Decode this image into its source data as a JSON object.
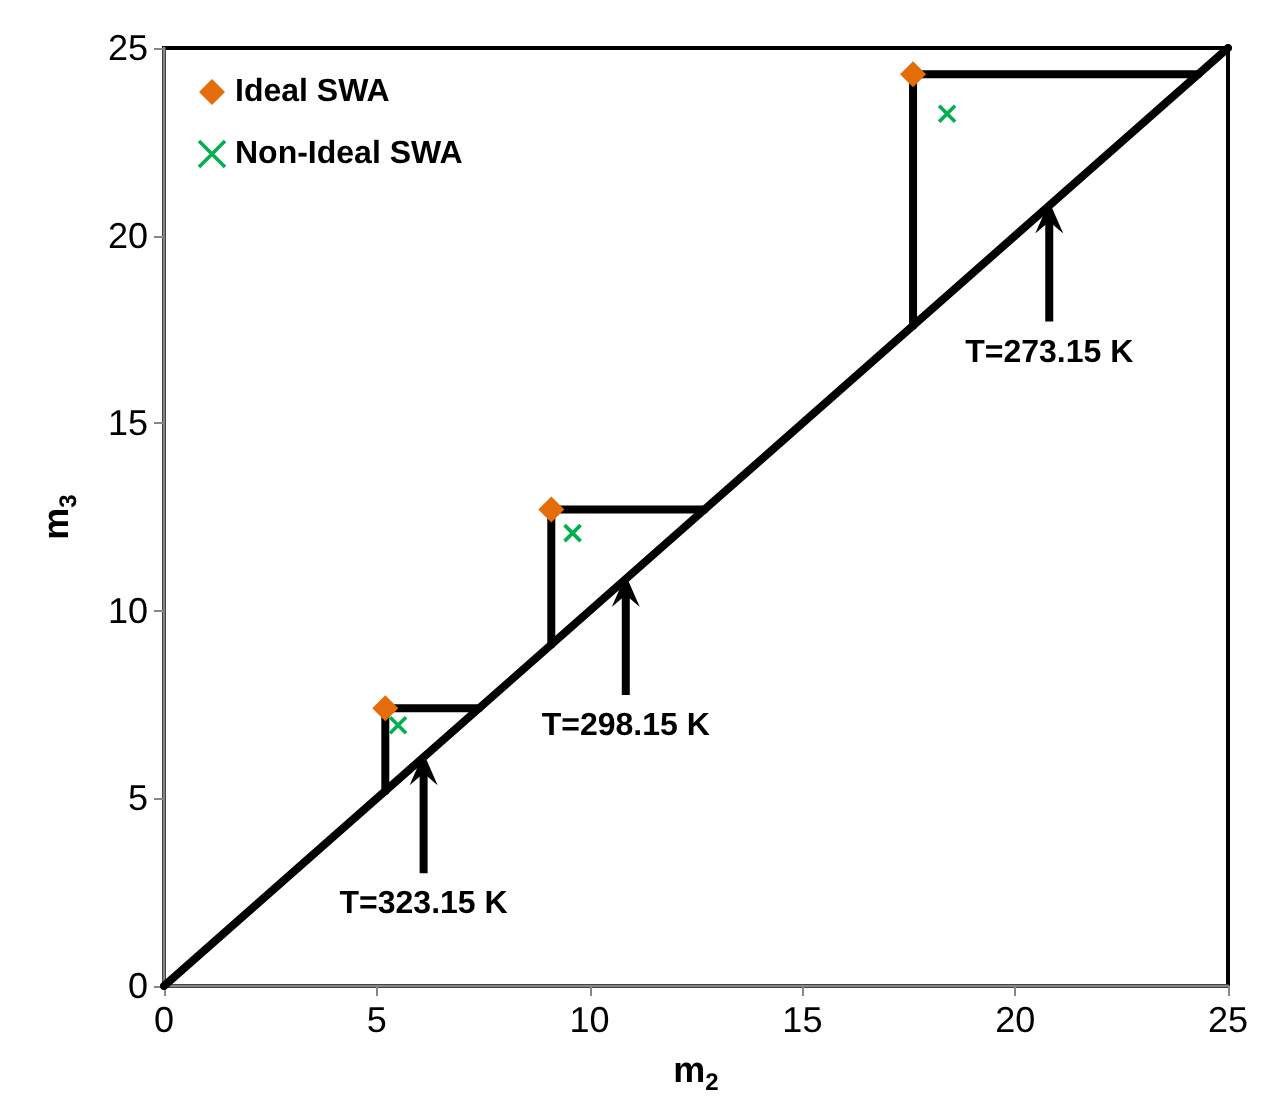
{
  "chart_data": {
    "type": "scatter",
    "xlabel": "m$_{2}$",
    "ylabel": "m$_{3}$",
    "xlim": [
      0,
      25
    ],
    "ylim": [
      0,
      25
    ],
    "xticks": [
      0,
      5,
      10,
      15,
      20,
      25
    ],
    "yticks": [
      0,
      5,
      10,
      15,
      20,
      25
    ],
    "grid": false,
    "legend": "top left",
    "series": [
      {
        "name": "Ideal SWA",
        "marker": "diamond",
        "color": "#e46c0a",
        "x": [
          5.2,
          9.1,
          17.6
        ],
        "values": [
          7.4,
          12.7,
          24.3
        ]
      },
      {
        "name": "Non-Ideal SWA",
        "marker": "cross",
        "color": "#00b050",
        "x": [
          5.5,
          9.6,
          18.4
        ],
        "values": [
          6.95,
          12.07,
          23.25
        ]
      },
      {
        "type": "line",
        "marker": "none",
        "color": "#000000",
        "x": [
          0,
          25
        ],
        "values": [
          0,
          25
        ]
      },
      {
        "type": "line",
        "marker": "none",
        "color": "#000000",
        "x": [
          5.2,
          5.2,
          7.4
        ],
        "values": [
          5.2,
          7.4,
          7.4
        ]
      },
      {
        "type": "line",
        "marker": "none",
        "color": "#000000",
        "x": [
          9.1,
          9.1,
          12.7
        ],
        "values": [
          9.1,
          12.7,
          12.7
        ]
      },
      {
        "type": "line",
        "marker": "none",
        "color": "#000000",
        "x": [
          17.6,
          17.6,
          24.3
        ],
        "values": [
          17.6,
          24.3,
          24.3
        ]
      }
    ],
    "annotations": [
      {
        "text": "T=323.15 K",
        "x": 6.1,
        "y": 6.1
      },
      {
        "text": "T=298.15 K",
        "x": 10.85,
        "y": 10.85
      },
      {
        "text": "T=273.15 K",
        "x": 20.8,
        "y": 20.8
      }
    ]
  }
}
